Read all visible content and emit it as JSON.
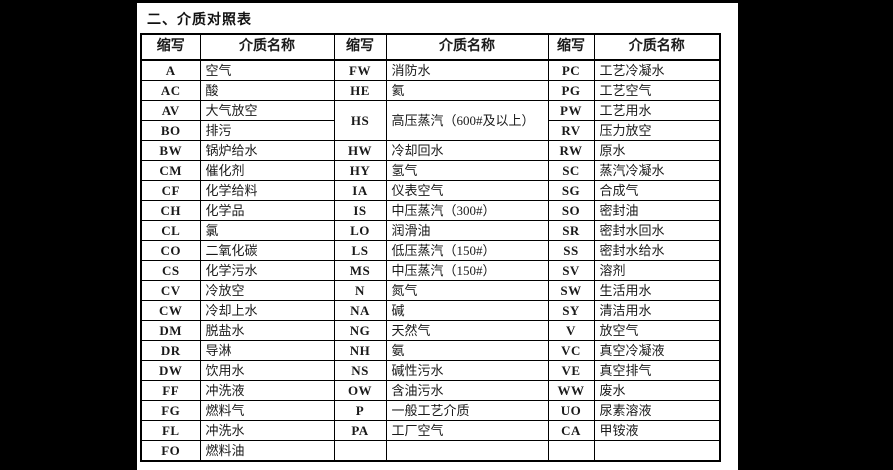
{
  "title": "二、介质对照表",
  "table": {
    "header_cells": [
      "缩写",
      "介质名称",
      "缩写",
      "介质名称",
      "缩写",
      "介质名称"
    ],
    "rows": [
      {
        "c1": {
          "a": "A",
          "n": "空气"
        },
        "c2": {
          "a": "FW",
          "n": "消防水"
        },
        "c3": {
          "a": "PC",
          "n": "工艺冷凝水"
        }
      },
      {
        "c1": {
          "a": "AC",
          "n": "酸"
        },
        "c2": {
          "a": "HE",
          "n": "氦"
        },
        "c3": {
          "a": "PG",
          "n": "工艺空气"
        }
      },
      {
        "c1": {
          "a": "AV",
          "n": "大气放空"
        },
        "c2": {
          "a": "HS",
          "n": "高压蒸汽（600#及以上）",
          "rs": 2
        },
        "c3": {
          "a": "PW",
          "n": "工艺用水"
        }
      },
      {
        "c1": {
          "a": "BO",
          "n": "排污"
        },
        "c2": null,
        "c3": {
          "a": "RV",
          "n": "压力放空"
        }
      },
      {
        "c1": {
          "a": "BW",
          "n": "锅炉给水"
        },
        "c2": {
          "a": "HW",
          "n": "冷却回水"
        },
        "c3": {
          "a": "RW",
          "n": "原水"
        }
      },
      {
        "c1": {
          "a": "CM",
          "n": "催化剂"
        },
        "c2": {
          "a": "HY",
          "n": "氢气"
        },
        "c3": {
          "a": "SC",
          "n": "蒸汽冷凝水"
        }
      },
      {
        "c1": {
          "a": "CF",
          "n": "化学给料"
        },
        "c2": {
          "a": "IA",
          "n": "仪表空气"
        },
        "c3": {
          "a": "SG",
          "n": "合成气"
        }
      },
      {
        "c1": {
          "a": "CH",
          "n": "化学品"
        },
        "c2": {
          "a": "IS",
          "n": "中压蒸汽（300#）"
        },
        "c3": {
          "a": "SO",
          "n": "密封油"
        }
      },
      {
        "c1": {
          "a": "CL",
          "n": "氯"
        },
        "c2": {
          "a": "LO",
          "n": "润滑油"
        },
        "c3": {
          "a": "SR",
          "n": "密封水回水"
        }
      },
      {
        "c1": {
          "a": "CO",
          "n": "二氧化碳"
        },
        "c2": {
          "a": "LS",
          "n": "低压蒸汽（150#）"
        },
        "c3": {
          "a": "SS",
          "n": "密封水给水"
        }
      },
      {
        "c1": {
          "a": "CS",
          "n": "化学污水"
        },
        "c2": {
          "a": "MS",
          "n": "中压蒸汽（150#）"
        },
        "c3": {
          "a": "SV",
          "n": "溶剂"
        }
      },
      {
        "c1": {
          "a": "CV",
          "n": "冷放空"
        },
        "c2": {
          "a": "N",
          "n": "氮气"
        },
        "c3": {
          "a": "SW",
          "n": "生活用水"
        }
      },
      {
        "c1": {
          "a": "CW",
          "n": "冷却上水"
        },
        "c2": {
          "a": "NA",
          "n": "碱"
        },
        "c3": {
          "a": "SY",
          "n": "清洁用水"
        }
      },
      {
        "c1": {
          "a": "DM",
          "n": "脱盐水"
        },
        "c2": {
          "a": "NG",
          "n": "天然气"
        },
        "c3": {
          "a": "V",
          "n": "放空气"
        }
      },
      {
        "c1": {
          "a": "DR",
          "n": "导淋"
        },
        "c2": {
          "a": "NH",
          "n": "氨"
        },
        "c3": {
          "a": "VC",
          "n": "真空冷凝液"
        }
      },
      {
        "c1": {
          "a": "DW",
          "n": "饮用水"
        },
        "c2": {
          "a": "NS",
          "n": "碱性污水"
        },
        "c3": {
          "a": "VE",
          "n": "真空排气"
        }
      },
      {
        "c1": {
          "a": "FF",
          "n": "冲洗液"
        },
        "c2": {
          "a": "OW",
          "n": "含油污水"
        },
        "c3": {
          "a": "WW",
          "n": "废水"
        }
      },
      {
        "c1": {
          "a": "FG",
          "n": "燃料气"
        },
        "c2": {
          "a": "P",
          "n": "一般工艺介质"
        },
        "c3": {
          "a": "UO",
          "n": "尿素溶液"
        }
      },
      {
        "c1": {
          "a": "FL",
          "n": "冲洗水"
        },
        "c2": {
          "a": "PA",
          "n": "工厂空气"
        },
        "c3": {
          "a": "CA",
          "n": "甲铵液"
        }
      },
      {
        "c1": {
          "a": "FO",
          "n": "燃料油"
        },
        "c2": {
          "a": "",
          "n": ""
        },
        "c3": {
          "a": "",
          "n": ""
        }
      }
    ]
  }
}
